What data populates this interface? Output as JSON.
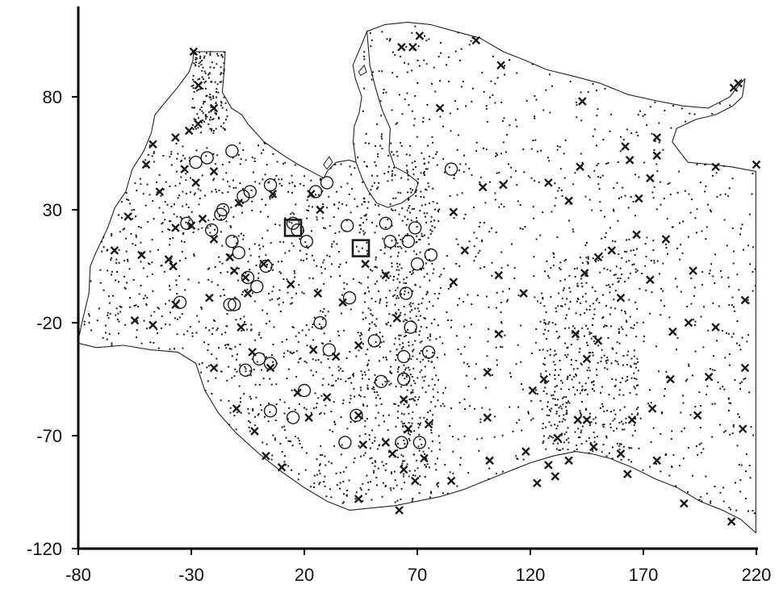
{
  "chart_data": {
    "type": "scatter",
    "title": "",
    "xlabel": "",
    "ylabel": "",
    "xlim": [
      -80,
      220
    ],
    "ylim": [
      -120,
      120
    ],
    "x_ticks": [
      -80,
      -30,
      20,
      70,
      120,
      170,
      220
    ],
    "y_ticks": [
      -120,
      -70,
      -20,
      30,
      80
    ],
    "grid": false,
    "legend": "none",
    "colors": {
      "ink": "#1a1a1a",
      "axis": "#000000",
      "coast": "#222222",
      "background": "#ffffff"
    },
    "coastline": [
      [
        -80.3,
        -29.0
      ],
      [
        -78.6,
        -21.0
      ],
      [
        -75.3,
        -7.0
      ],
      [
        -74.7,
        5.0
      ],
      [
        -72.2,
        11.0
      ],
      [
        -67.0,
        22.0
      ],
      [
        -63.8,
        31.0
      ],
      [
        -59.0,
        38.0
      ],
      [
        -56.1,
        48.0
      ],
      [
        -51.0,
        56.0
      ],
      [
        -47.7,
        64.0
      ],
      [
        -46.1,
        72.0
      ],
      [
        -40.4,
        79.0
      ],
      [
        -36.2,
        84.0
      ],
      [
        -31.0,
        91.0
      ],
      [
        -29.3,
        96.0
      ],
      [
        -29.0,
        100.0
      ],
      [
        -15.0,
        100.0
      ],
      [
        -15.6,
        90.0
      ],
      [
        -16.3,
        82.0
      ],
      [
        -12.2,
        75.0
      ],
      [
        -7.6,
        72.0
      ],
      [
        -5.0,
        68.0
      ],
      [
        2.3,
        60.0
      ],
      [
        10.9,
        54.0
      ],
      [
        17.3,
        50.0
      ],
      [
        24.9,
        46.0
      ],
      [
        28.7,
        44.0
      ],
      [
        30.1,
        47.0
      ],
      [
        34.0,
        51.0
      ],
      [
        39.8,
        52.0
      ],
      [
        42.9,
        51.0
      ],
      [
        41.6,
        60.0
      ],
      [
        42.1,
        67.0
      ],
      [
        44.3,
        73.0
      ],
      [
        45.4,
        80.0
      ],
      [
        42.6,
        88.0
      ],
      [
        41.5,
        94.0
      ],
      [
        45.3,
        103.0
      ],
      [
        47.7,
        109.0
      ],
      [
        55.8,
        112.0
      ],
      [
        65.6,
        113.0
      ],
      [
        75.7,
        112.0
      ],
      [
        86.6,
        109.0
      ],
      [
        97.7,
        106.0
      ],
      [
        108.0,
        100.0
      ],
      [
        118.1,
        96.0
      ],
      [
        127.3,
        92.0
      ],
      [
        139.6,
        89.0
      ],
      [
        150.9,
        86.0
      ],
      [
        163.2,
        81.0
      ],
      [
        176.9,
        78.0
      ],
      [
        187.4,
        76.0
      ],
      [
        198.7,
        75.0
      ],
      [
        208.3,
        80.0
      ],
      [
        213.0,
        86.0
      ],
      [
        215.0,
        88.0
      ],
      [
        213.8,
        80.0
      ],
      [
        209.6,
        76.0
      ],
      [
        201.8,
        72.0
      ],
      [
        193.3,
        70.0
      ],
      [
        184.7,
        66.0
      ],
      [
        182.8,
        60.0
      ],
      [
        189.7,
        51.0
      ],
      [
        200.3,
        50.0
      ],
      [
        209.0,
        49.0
      ],
      [
        219.8,
        47.0
      ],
      [
        219.8,
        -113.0
      ],
      [
        213.0,
        -107.0
      ],
      [
        205.0,
        -103.0
      ],
      [
        195.0,
        -99.0
      ],
      [
        185.0,
        -93.0
      ],
      [
        175.0,
        -89.0
      ],
      [
        165.0,
        -84.0
      ],
      [
        155.0,
        -80.0
      ],
      [
        147.0,
        -78.0
      ],
      [
        140.0,
        -77.0
      ],
      [
        130.0,
        -79.0
      ],
      [
        120.0,
        -82.0
      ],
      [
        110.0,
        -86.0
      ],
      [
        100.0,
        -90.0
      ],
      [
        90.0,
        -94.0
      ],
      [
        80.0,
        -97.0
      ],
      [
        70.0,
        -99.0
      ],
      [
        60.0,
        -101.0
      ],
      [
        50.0,
        -102.0
      ],
      [
        40.0,
        -103.0
      ],
      [
        30.0,
        -99.0
      ],
      [
        20.0,
        -93.0
      ],
      [
        10.0,
        -86.0
      ],
      [
        0.0,
        -78.0
      ],
      [
        -10.0,
        -69.0
      ],
      [
        -18.0,
        -60.0
      ],
      [
        -24.0,
        -50.0
      ],
      [
        -28.0,
        -38.0
      ],
      [
        -36.0,
        -33.0
      ],
      [
        -48.0,
        -32.0
      ],
      [
        -60.0,
        -30.0
      ],
      [
        -72.0,
        -31.0
      ],
      [
        -80.3,
        -29.0
      ]
    ],
    "inner_coast": [
      [
        42.9,
        51.0
      ],
      [
        45.5,
        44.0
      ],
      [
        48.5,
        38.0
      ],
      [
        52.0,
        33.0
      ],
      [
        57.0,
        31.0
      ],
      [
        63.0,
        33.0
      ],
      [
        68.5,
        37.0
      ],
      [
        70.5,
        42.0
      ],
      [
        65.5,
        46.0
      ],
      [
        60.0,
        49.0
      ],
      [
        57.5,
        56.0
      ],
      [
        58.0,
        66.0
      ],
      [
        54.5,
        74.0
      ],
      [
        51.5,
        84.0
      ],
      [
        49.0,
        94.0
      ],
      [
        47.7,
        109.0
      ]
    ],
    "lakes": [
      [
        [
          28.5,
          50.0
        ],
        [
          31.0,
          53.5
        ],
        [
          32.5,
          51.0
        ],
        [
          30.0,
          48.0
        ]
      ],
      [
        [
          44.0,
          91.0
        ],
        [
          46.5,
          94.0
        ],
        [
          47.5,
          91.0
        ],
        [
          45.0,
          89.5
        ]
      ]
    ],
    "series": [
      {
        "marker": "x",
        "points": [
          [
            -29.0,
            100.0
          ],
          [
            -26.8,
            85.1
          ],
          [
            -27.0,
            68.0
          ],
          [
            -20.0,
            75.0
          ],
          [
            -37.0,
            62.0
          ],
          [
            -31.0,
            65.0
          ],
          [
            -47.0,
            59.0
          ],
          [
            -50.0,
            50.0
          ],
          [
            -28.0,
            42.0
          ],
          [
            -20.0,
            47.0
          ],
          [
            -33.0,
            48.0
          ],
          [
            -44.0,
            38.0
          ],
          [
            -58.0,
            27.0
          ],
          [
            -64.0,
            12.0
          ],
          [
            -52.0,
            10.0
          ],
          [
            -40.0,
            8.0
          ],
          [
            -30.0,
            23.0
          ],
          [
            -37.0,
            22.0
          ],
          [
            -25.0,
            26.0
          ],
          [
            -9.0,
            33.0
          ],
          [
            6.0,
            37.0
          ],
          [
            23.0,
            37.0
          ],
          [
            27.0,
            30.0
          ],
          [
            -20.0,
            17.0
          ],
          [
            -13.0,
            9.0
          ],
          [
            -6.0,
            0.0
          ],
          [
            2.0,
            6.0
          ],
          [
            -22.0,
            -9.0
          ],
          [
            -37.0,
            -12.0
          ],
          [
            -47.0,
            -21.0
          ],
          [
            -55.0,
            -19.0
          ],
          [
            -38.0,
            5.0
          ],
          [
            -11.0,
            3.0
          ],
          [
            -5.0,
            -7.0
          ],
          [
            14.0,
            -3.0
          ],
          [
            26.0,
            -7.0
          ],
          [
            37.0,
            -11.0
          ],
          [
            56.0,
            1.0
          ],
          [
            47.0,
            6.0
          ],
          [
            -8.0,
            -22.0
          ],
          [
            -3.0,
            -33.0
          ],
          [
            -20.0,
            -40.0
          ],
          [
            -10.0,
            -58.0
          ],
          [
            5.0,
            -40.0
          ],
          [
            24.0,
            -32.0
          ],
          [
            34.0,
            -35.0
          ],
          [
            44.0,
            -30.0
          ],
          [
            61.0,
            -18.0
          ],
          [
            17.0,
            -51.0
          ],
          [
            30.0,
            -53.0
          ],
          [
            22.0,
            -62.0
          ],
          [
            3.0,
            -79.0
          ],
          [
            10.0,
            -84.0
          ],
          [
            -2.0,
            -68.0
          ],
          [
            44.0,
            -61.0
          ],
          [
            46.0,
            -74.0
          ],
          [
            64.0,
            -54.0
          ],
          [
            66.0,
            -67.0
          ],
          [
            56.0,
            -73.0
          ],
          [
            59.0,
            -78.0
          ],
          [
            64.0,
            -85.0
          ],
          [
            69.0,
            -90.0
          ],
          [
            75.0,
            -65.0
          ],
          [
            73.0,
            -80.0
          ],
          [
            85.0,
            -90.0
          ],
          [
            44.0,
            -98.0
          ],
          [
            62.0,
            -103.0
          ],
          [
            86.0,
            -2.0
          ],
          [
            91.0,
            12.0
          ],
          [
            99.0,
            40.0
          ],
          [
            108.0,
            41.0
          ],
          [
            128.0,
            42.0
          ],
          [
            86.0,
            29.0
          ],
          [
            106.0,
            1.0
          ],
          [
            117.0,
            -7.0
          ],
          [
            101.0,
            -42.0
          ],
          [
            106.0,
            -25.0
          ],
          [
            121.0,
            -50.0
          ],
          [
            101.0,
            -62.0
          ],
          [
            102.0,
            -81.0
          ],
          [
            118.0,
            -77.0
          ],
          [
            123.0,
            -91.0
          ],
          [
            128.0,
            -83.0
          ],
          [
            126.0,
            -45.0
          ],
          [
            140.0,
            -25.0
          ],
          [
            145.0,
            -36.0
          ],
          [
            150.0,
            -28.0
          ],
          [
            145.0,
            -63.0
          ],
          [
            132.0,
            -71.0
          ],
          [
            131.0,
            -88.0
          ],
          [
            137.0,
            -81.0
          ],
          [
            141.0,
            -63.0
          ],
          [
            148.0,
            -75.0
          ],
          [
            160.0,
            -78.0
          ],
          [
            163.0,
            -87.0
          ],
          [
            165.0,
            -63.0
          ],
          [
            176.0,
            -81.0
          ],
          [
            182.0,
            -45.0
          ],
          [
            174.0,
            -58.0
          ],
          [
            188.0,
            -100.0
          ],
          [
            183.0,
            -24.0
          ],
          [
            190.0,
            -20.0
          ],
          [
            194.0,
            -61.0
          ],
          [
            199.0,
            -44.0
          ],
          [
            209.0,
            -108.0
          ],
          [
            215.0,
            -40.0
          ],
          [
            214.0,
            -67.0
          ],
          [
            202.0,
            -22.0
          ],
          [
            215.0,
            -10.0
          ],
          [
            144.0,
            2.0
          ],
          [
            150.0,
            9.0
          ],
          [
            156.0,
            12.0
          ],
          [
            160.0,
            -9.0
          ],
          [
            167.0,
            19.0
          ],
          [
            173.0,
            -1.0
          ],
          [
            180.0,
            17.0
          ],
          [
            192.0,
            3.0
          ],
          [
            137.0,
            34.0
          ],
          [
            142.0,
            49.0
          ],
          [
            143.0,
            78.0
          ],
          [
            96.0,
            105.0
          ],
          [
            71.0,
            107.0
          ],
          [
            68.0,
            102.0
          ],
          [
            63.0,
            102.0
          ],
          [
            80.0,
            75.0
          ],
          [
            107.0,
            94.0
          ],
          [
            164.0,
            52.0
          ],
          [
            168.0,
            35.0
          ],
          [
            173.0,
            44.0
          ],
          [
            176.0,
            54.0
          ],
          [
            176.0,
            62.0
          ],
          [
            202.0,
            49.0
          ],
          [
            210.0,
            84.0
          ],
          [
            220.0,
            50.0
          ],
          [
            212.0,
            86.0
          ],
          [
            162.0,
            58.0
          ]
        ]
      },
      {
        "marker": "circle",
        "points": [
          [
            -23.0,
            53.0
          ],
          [
            -12.0,
            56.0
          ],
          [
            5.0,
            41.0
          ],
          [
            -4.0,
            38.0
          ],
          [
            -7.0,
            36.0
          ],
          [
            -16.0,
            30.0
          ],
          [
            -17.0,
            28.0
          ],
          [
            -32.0,
            24.0
          ],
          [
            -21.0,
            21.0
          ],
          [
            -12.0,
            16.0
          ],
          [
            -9.0,
            11.0
          ],
          [
            15.0,
            24.0
          ],
          [
            17.0,
            21.0
          ],
          [
            21.0,
            16.0
          ],
          [
            25.0,
            38.0
          ],
          [
            30.0,
            42.0
          ],
          [
            39.0,
            23.0
          ],
          [
            56.0,
            24.0
          ],
          [
            58.0,
            16.0
          ],
          [
            66.0,
            16.0
          ],
          [
            69.0,
            22.0
          ],
          [
            76.0,
            10.0
          ],
          [
            70.0,
            6.0
          ],
          [
            3.0,
            5.0
          ],
          [
            -5.0,
            0.0
          ],
          [
            -1.0,
            -4.0
          ],
          [
            -11.0,
            -12.0
          ],
          [
            -13.0,
            -12.0
          ],
          [
            -35.0,
            -11.0
          ],
          [
            40.0,
            -9.0
          ],
          [
            51.0,
            -28.0
          ],
          [
            31.0,
            -32.0
          ],
          [
            27.0,
            -20.0
          ],
          [
            5.0,
            -38.0
          ],
          [
            0.0,
            -36.0
          ],
          [
            -6.0,
            -41.0
          ],
          [
            20.0,
            -50.0
          ],
          [
            15.0,
            -62.0
          ],
          [
            5.0,
            -59.0
          ],
          [
            43.0,
            -61.0
          ],
          [
            54.0,
            -46.0
          ],
          [
            64.0,
            -35.0
          ],
          [
            64.0,
            -45.0
          ],
          [
            65.0,
            -7.0
          ],
          [
            67.0,
            -22.0
          ],
          [
            75.0,
            -33.0
          ],
          [
            38.0,
            -73.0
          ],
          [
            63.0,
            -73.0
          ],
          [
            71.0,
            -73.0
          ],
          [
            85.0,
            48.0
          ],
          [
            -28.0,
            51.0
          ]
        ]
      },
      {
        "marker": "square",
        "points": [
          [
            15.0,
            22.0
          ],
          [
            45.0,
            13.0
          ]
        ]
      }
    ]
  }
}
